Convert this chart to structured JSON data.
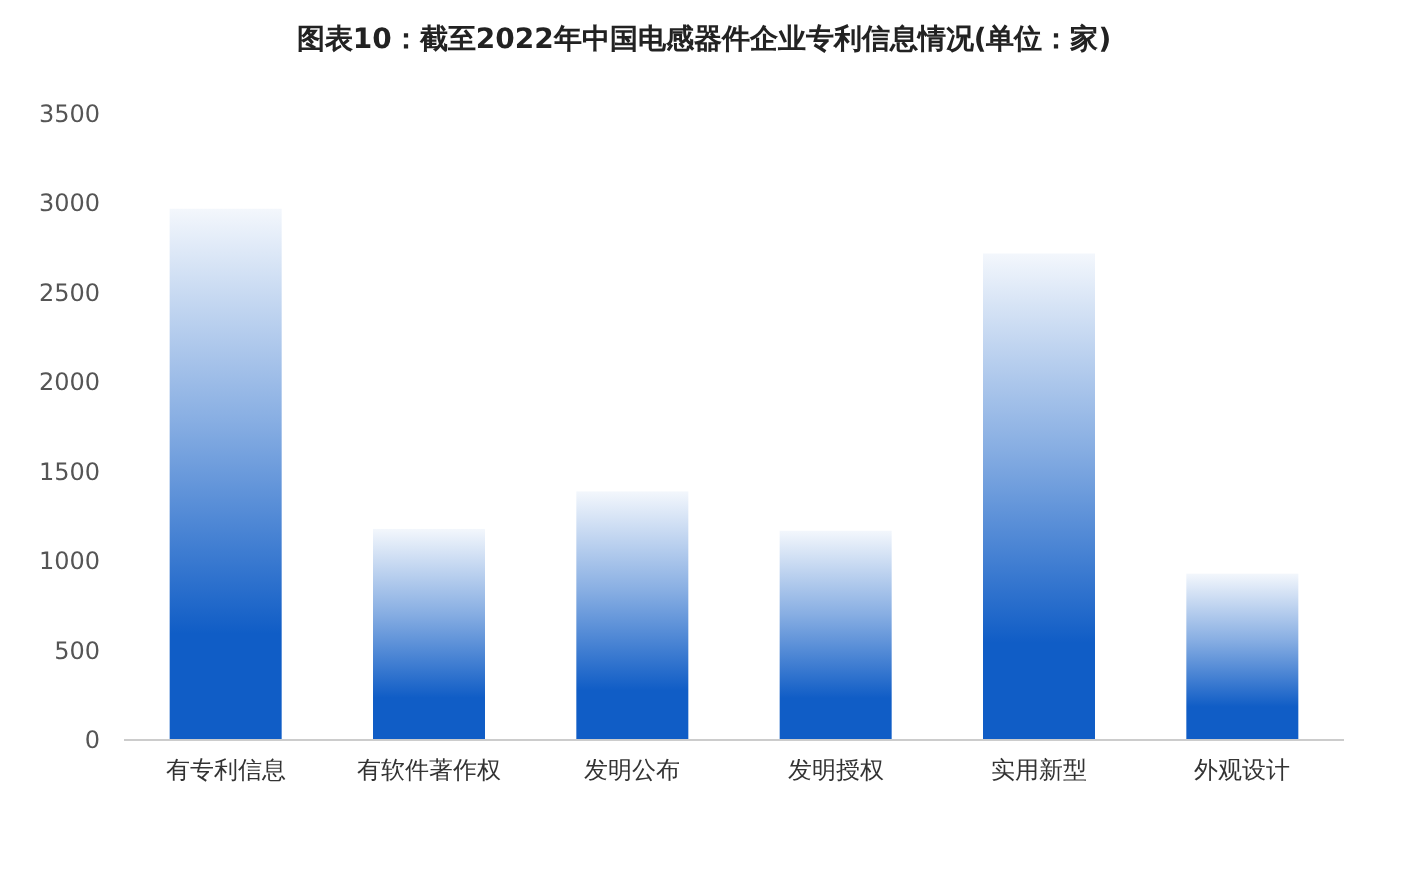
{
  "chart_data": {
    "type": "bar",
    "title": "图表10：截至2022年中国电感器件企业专利信息情况(单位：家)",
    "categories": [
      "有专利信息",
      "有软件著作权",
      "发明公布",
      "发明授权",
      "实用新型",
      "外观设计"
    ],
    "values": [
      2970,
      1180,
      1390,
      1170,
      2720,
      930
    ],
    "color": "#105dc6",
    "ylim": [
      0,
      3500
    ],
    "yticks": [
      0,
      500,
      1000,
      1500,
      2000,
      2500,
      3000,
      3500
    ],
    "grid": false
  }
}
